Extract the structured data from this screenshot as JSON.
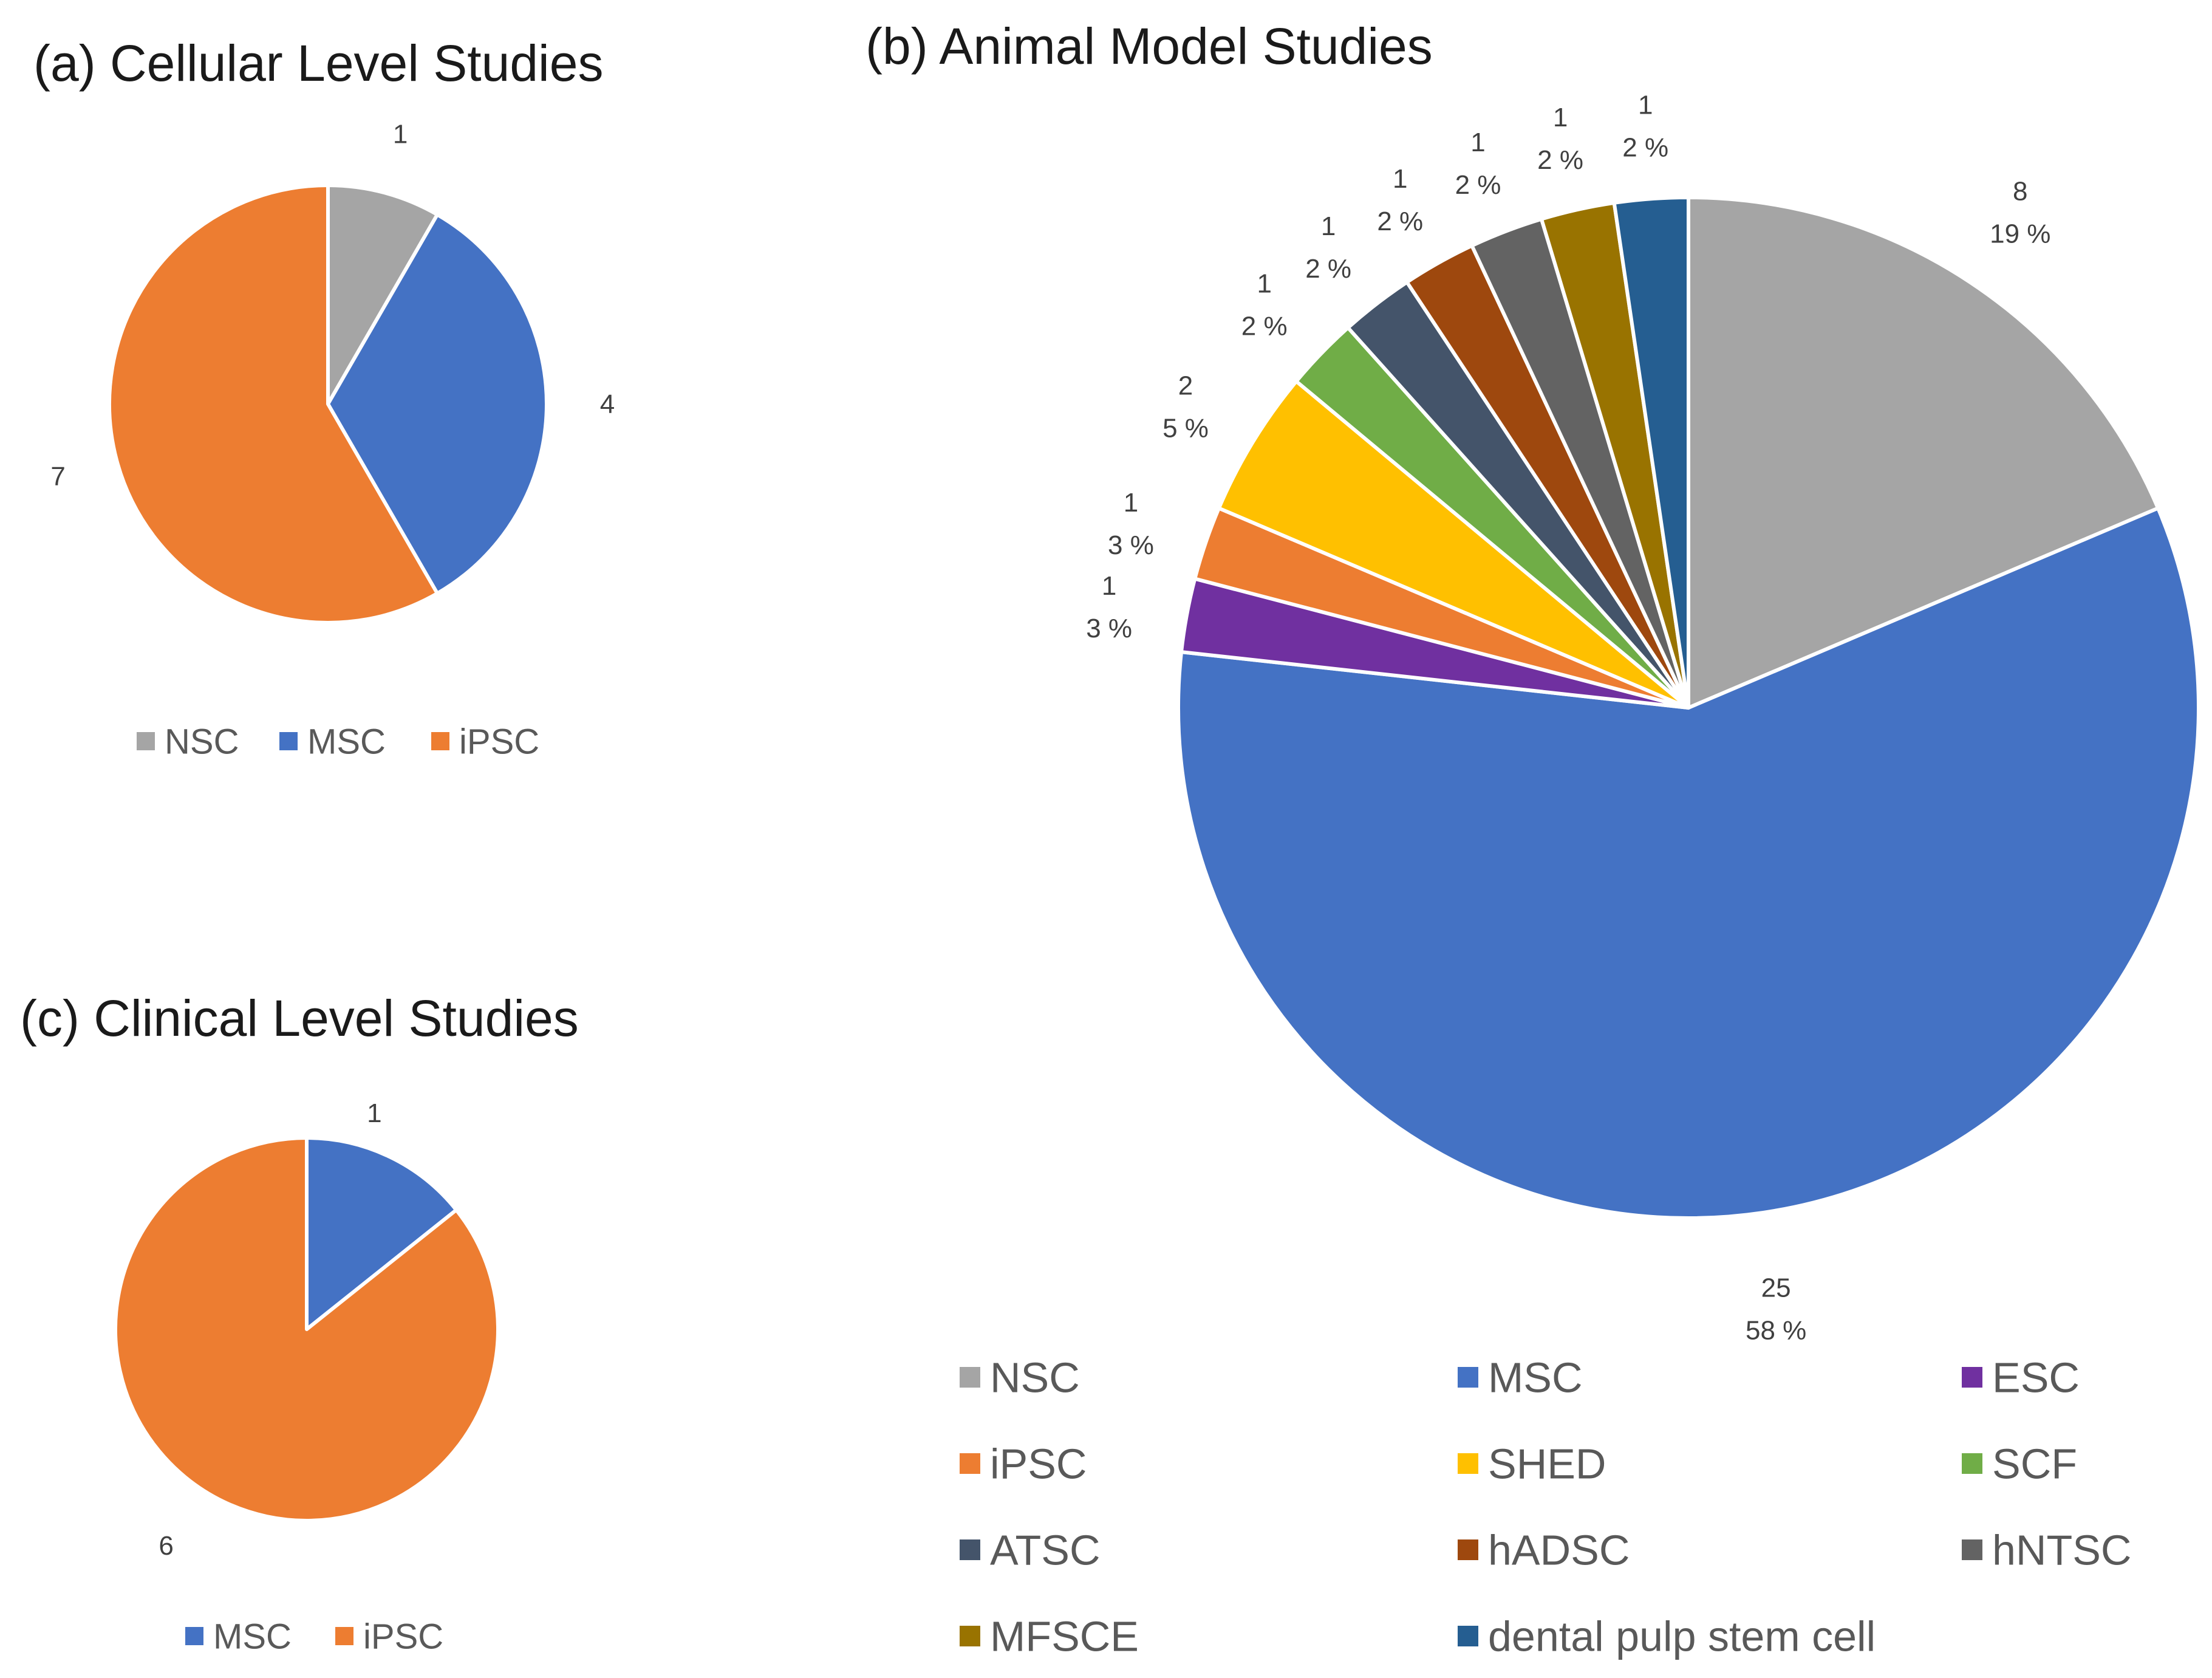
{
  "chart_data": [
    {
      "type": "pie",
      "title": "(a) Cellular Level Studies",
      "categories": [
        "NSC",
        "MSC",
        "iPSC"
      ],
      "values": [
        1,
        4,
        7
      ],
      "colors": [
        "#A5A5A5",
        "#4472C4",
        "#ED7D31"
      ],
      "data_labels": [
        "1",
        "4",
        "7"
      ],
      "legend": {
        "position": "bottom"
      }
    },
    {
      "type": "pie",
      "title": "(b) Animal Model Studies",
      "categories": [
        "NSC",
        "MSC",
        "ESC",
        "iPSC",
        "SHED",
        "SCF",
        "ATSC",
        "hADSC",
        "hNTSC",
        "MFSCE",
        "dental pulp stem cell"
      ],
      "values": [
        8,
        25,
        1,
        1,
        2,
        1,
        1,
        1,
        1,
        1,
        1
      ],
      "percents": [
        "19 %",
        "58 %",
        "3 %",
        "3 %",
        "5 %",
        "2 %",
        "2 %",
        "2 %",
        "2 %",
        "2 %",
        "2 %"
      ],
      "colors": [
        "#A5A5A5",
        "#4472C4",
        "#7030A0",
        "#ED7D31",
        "#FFC000",
        "#70AD47",
        "#44546A",
        "#9E480E",
        "#636363",
        "#997300",
        "#255E91"
      ],
      "data_labels": [
        "8",
        "25",
        "1",
        "1",
        "2",
        "1",
        "1",
        "1",
        "1",
        "1",
        "1"
      ],
      "legend": {
        "position": "bottom",
        "columns": 3
      }
    },
    {
      "type": "pie",
      "title": "(c) Clinical Level Studies",
      "categories": [
        "MSC",
        "iPSC"
      ],
      "values": [
        1,
        6
      ],
      "colors": [
        "#4472C4",
        "#ED7D31"
      ],
      "data_labels": [
        "1",
        "6"
      ],
      "legend": {
        "position": "bottom"
      }
    }
  ]
}
